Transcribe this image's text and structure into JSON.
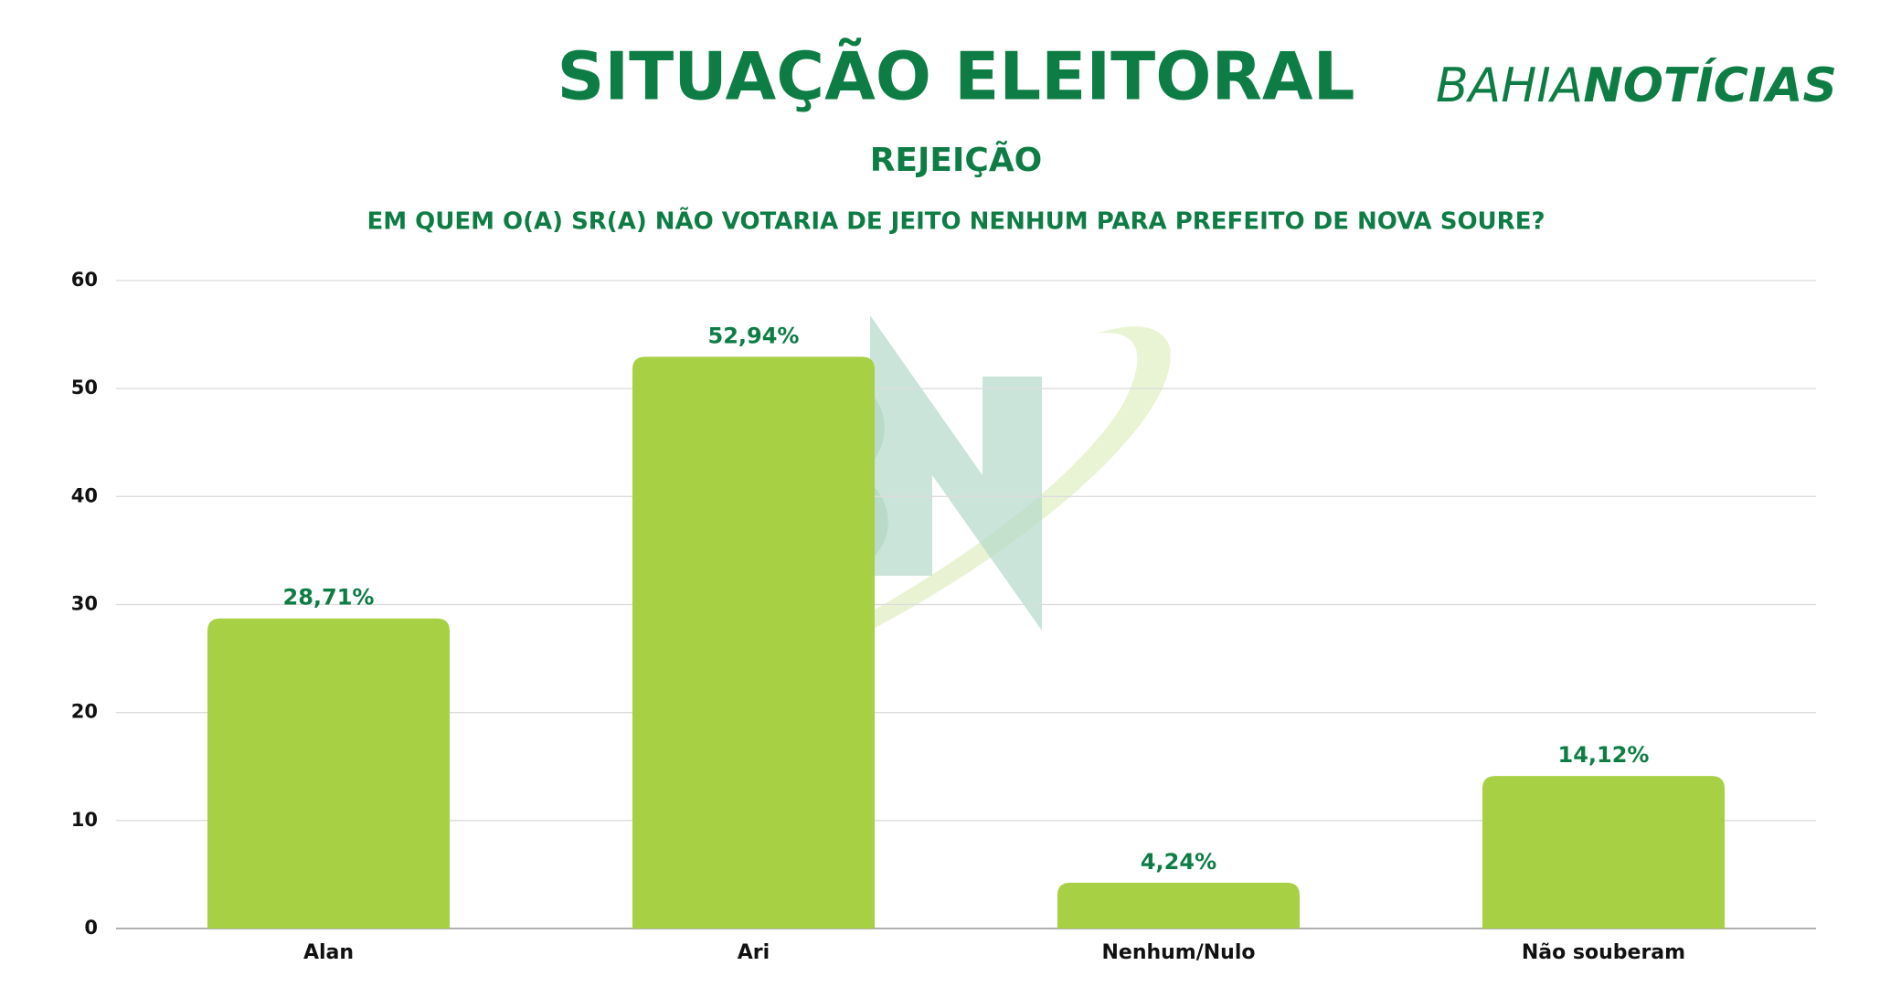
{
  "chart_data": {
    "type": "bar",
    "title": "SITUAÇÃO ELEITORAL",
    "subtitle": "REJEIÇÃO",
    "question": "EM QUEM O(A) SR(A) NÃO VOTARIA DE JEITO NENHUM PARA PREFEITO DE NOVA SOURE?",
    "logo": {
      "first": "BAHIA",
      "second": "NOTÍCIAS"
    },
    "categories": [
      "Alan",
      "Ari",
      "Nenhum/Nulo",
      "Não souberam"
    ],
    "values": [
      28.71,
      52.94,
      4.24,
      14.12
    ],
    "value_labels": [
      "28,71%",
      "52,94%",
      "4,24%",
      "14,12%"
    ],
    "color": "#a8d045",
    "ylim": [
      0,
      60
    ],
    "yticks": [
      0,
      10,
      20,
      30,
      40,
      50,
      60
    ],
    "grid": true
  }
}
